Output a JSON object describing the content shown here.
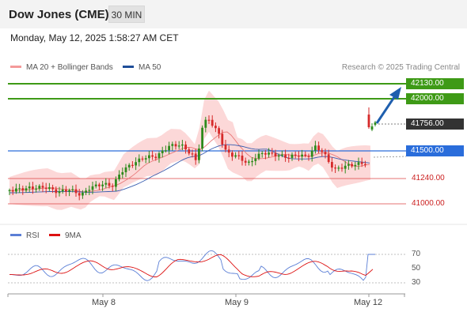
{
  "header": {
    "title": "Dow Jones (CME)",
    "timeframe": "30 MIN"
  },
  "datetime": "Monday, May 12, 2025 1:58:27 AM CET",
  "legend": {
    "bollinger": {
      "label": "MA 20 + Bollinger Bands",
      "color": "#f49a9a"
    },
    "ma50": {
      "label": "MA 50",
      "color": "#1f4e99"
    }
  },
  "attribution": "Research © 2025 Trading Central",
  "levels": {
    "r2": {
      "value": "42130.00",
      "color": "#3e9a16"
    },
    "r1": {
      "value": "42000.00",
      "color": "#3e9a16"
    },
    "current": {
      "value": "41756.00",
      "color": "#333333"
    },
    "pivot": {
      "value": "41500.00",
      "color": "#2a6ddb"
    },
    "s1": {
      "value": "41240.00",
      "color": "#cc2222"
    },
    "s2": {
      "value": "41000.00",
      "color": "#cc2222"
    }
  },
  "rsi_legend": {
    "rsi": {
      "label": "RSI",
      "color": "#5b7fd6"
    },
    "ma9": {
      "label": "9MA",
      "color": "#dd1111"
    }
  },
  "rsi_scale": [
    "70",
    "50",
    "30"
  ],
  "x_axis": [
    "May 8",
    "May 9",
    "May 12"
  ],
  "colors": {
    "bull": "#2e8b1c",
    "bear": "#d62a2a",
    "band_fill": "#fcd8d8",
    "arrow": "#1f5fae"
  }
}
